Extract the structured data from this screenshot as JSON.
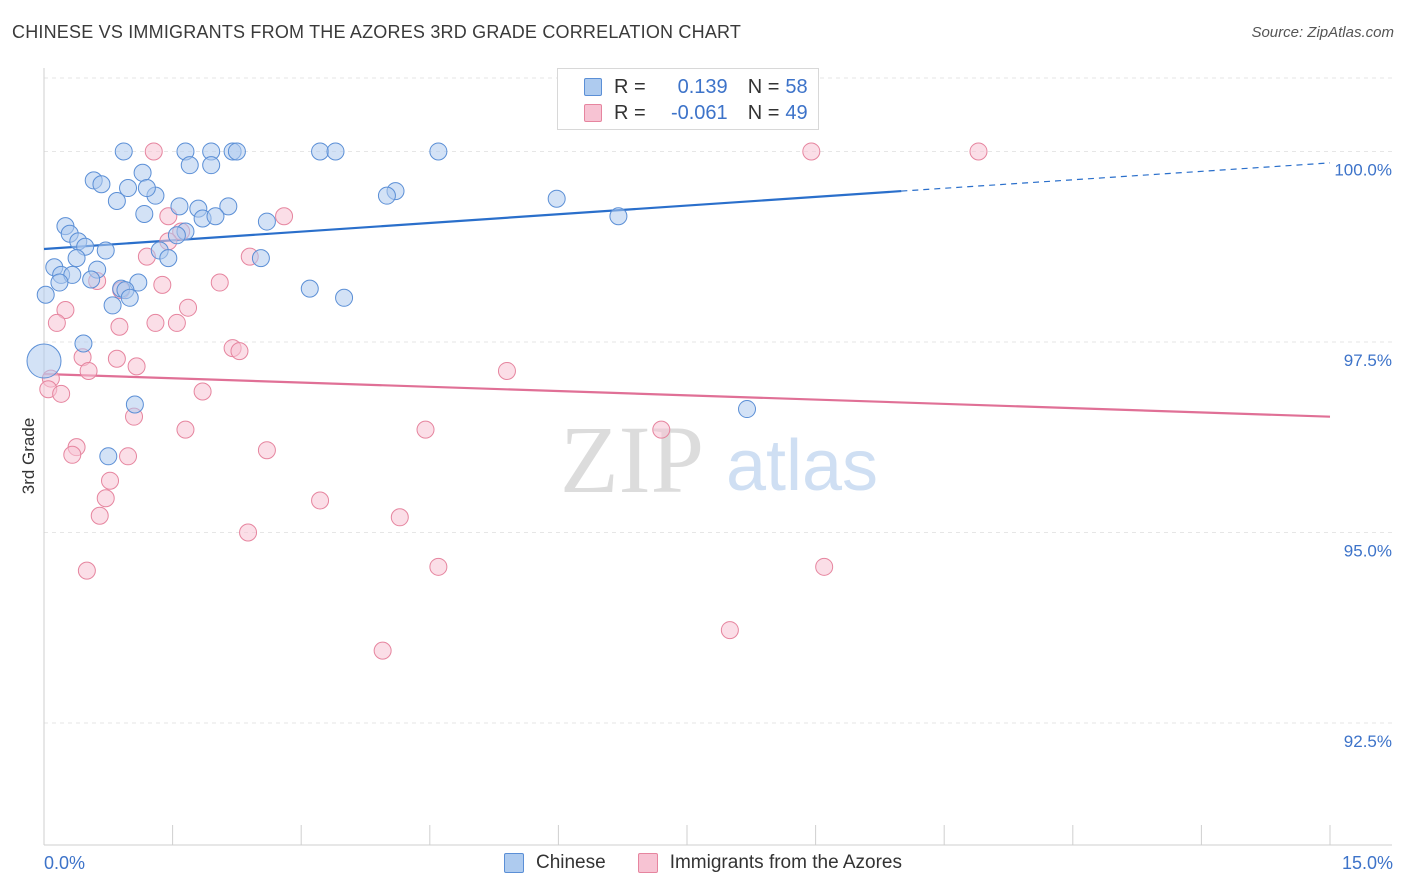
{
  "title": "CHINESE VS IMMIGRANTS FROM THE AZORES 3RD GRADE CORRELATION CHART",
  "source": "Source: ZipAtlas.com",
  "watermark": {
    "zip": "ZIP",
    "atlas": "atlas"
  },
  "legend": {
    "r_label": "R =",
    "n_label": "N =",
    "rows": [
      {
        "name": "Chinese",
        "r": "0.139",
        "n": "58"
      },
      {
        "name": "Immigrants from the Azores",
        "r": "-0.061",
        "n": "49"
      }
    ]
  },
  "chart_data": {
    "type": "scatter",
    "title": "CHINESE VS IMMIGRANTS FROM THE AZORES 3RD GRADE CORRELATION CHART",
    "xlabel": "",
    "ylabel": "3rd Grade",
    "xlim": [
      0,
      15
    ],
    "ylim": [
      90.9,
      101.2
    ],
    "x_tick_labels": [
      "0.0%",
      "15.0%"
    ],
    "y_ticks": [
      92.5,
      95.0,
      97.5,
      100.0
    ],
    "y_tick_labels": [
      "92.5%",
      "95.0%",
      "97.5%",
      "100.0%"
    ],
    "grid": true,
    "legend_position": "top-center",
    "colors": {
      "chinese_fill": "#aecbef",
      "chinese_stroke": "#5b8fd6",
      "chinese_line": "#2a6fcb",
      "azores_fill": "#f7c3d3",
      "azores_stroke": "#e6859f",
      "azores_line": "#e07096",
      "tick_label": "#3d73c9"
    },
    "series": [
      {
        "name": "Chinese",
        "trend": {
          "x0": 0.0,
          "y0": 98.72,
          "x1": 10.0,
          "y1": 99.48,
          "dash_x1": 15.0,
          "dash_y1": 99.85
        },
        "points": [
          [
            0.93,
            100.0
          ],
          [
            1.65,
            100.0
          ],
          [
            1.95,
            100.0
          ],
          [
            2.2,
            100.0
          ],
          [
            2.25,
            100.0
          ],
          [
            3.22,
            100.0
          ],
          [
            3.4,
            100.0
          ],
          [
            4.6,
            100.0
          ],
          [
            1.7,
            99.82
          ],
          [
            1.95,
            99.82
          ],
          [
            0.58,
            99.62
          ],
          [
            1.15,
            99.72
          ],
          [
            0.67,
            99.57
          ],
          [
            0.98,
            99.52
          ],
          [
            1.3,
            99.42
          ],
          [
            1.2,
            99.52
          ],
          [
            4.1,
            99.48
          ],
          [
            4.0,
            99.42
          ],
          [
            5.98,
            99.38
          ],
          [
            0.85,
            99.35
          ],
          [
            1.58,
            99.28
          ],
          [
            1.8,
            99.25
          ],
          [
            2.15,
            99.28
          ],
          [
            1.17,
            99.18
          ],
          [
            1.85,
            99.12
          ],
          [
            6.7,
            99.15
          ],
          [
            2.6,
            99.08
          ],
          [
            0.25,
            99.02
          ],
          [
            0.3,
            98.92
          ],
          [
            1.65,
            98.95
          ],
          [
            0.4,
            98.82
          ],
          [
            0.48,
            98.75
          ],
          [
            1.35,
            98.7
          ],
          [
            0.72,
            98.7
          ],
          [
            0.38,
            98.6
          ],
          [
            1.45,
            98.6
          ],
          [
            2.53,
            98.6
          ],
          [
            0.12,
            98.48
          ],
          [
            0.2,
            98.38
          ],
          [
            0.33,
            98.38
          ],
          [
            0.62,
            98.45
          ],
          [
            0.55,
            98.32
          ],
          [
            0.18,
            98.28
          ],
          [
            1.1,
            98.28
          ],
          [
            0.9,
            98.2
          ],
          [
            0.95,
            98.18
          ],
          [
            3.1,
            98.2
          ],
          [
            0.02,
            98.12
          ],
          [
            1.0,
            98.08
          ],
          [
            3.5,
            98.08
          ],
          [
            0.8,
            97.98
          ],
          [
            0.46,
            97.48
          ],
          [
            0.0,
            97.25
          ],
          [
            1.06,
            96.68
          ],
          [
            8.2,
            96.62
          ],
          [
            0.75,
            96.0
          ],
          [
            1.55,
            98.9
          ],
          [
            2.0,
            99.15
          ]
        ]
      },
      {
        "name": "Immigrants from the Azores",
        "trend": {
          "x0": 0.0,
          "y0": 97.08,
          "x1": 15.0,
          "y1": 96.52
        },
        "points": [
          [
            1.28,
            100.0
          ],
          [
            8.95,
            100.0
          ],
          [
            10.9,
            100.0
          ],
          [
            2.8,
            99.15
          ],
          [
            1.45,
            99.15
          ],
          [
            1.6,
            98.95
          ],
          [
            1.45,
            98.82
          ],
          [
            1.2,
            98.62
          ],
          [
            2.4,
            98.62
          ],
          [
            0.62,
            98.3
          ],
          [
            1.38,
            98.25
          ],
          [
            2.05,
            98.28
          ],
          [
            0.9,
            98.18
          ],
          [
            1.68,
            97.95
          ],
          [
            0.25,
            97.92
          ],
          [
            0.15,
            97.75
          ],
          [
            1.3,
            97.75
          ],
          [
            1.55,
            97.75
          ],
          [
            0.88,
            97.7
          ],
          [
            2.2,
            97.42
          ],
          [
            2.28,
            97.38
          ],
          [
            0.45,
            97.3
          ],
          [
            0.85,
            97.28
          ],
          [
            1.08,
            97.18
          ],
          [
            0.52,
            97.12
          ],
          [
            5.4,
            97.12
          ],
          [
            0.08,
            97.02
          ],
          [
            0.05,
            96.88
          ],
          [
            0.2,
            96.82
          ],
          [
            1.85,
            96.85
          ],
          [
            1.05,
            96.52
          ],
          [
            1.65,
            96.35
          ],
          [
            4.45,
            96.35
          ],
          [
            7.2,
            96.35
          ],
          [
            0.38,
            96.12
          ],
          [
            2.6,
            96.08
          ],
          [
            0.33,
            96.02
          ],
          [
            0.98,
            96.0
          ],
          [
            0.77,
            95.68
          ],
          [
            0.72,
            95.45
          ],
          [
            3.22,
            95.42
          ],
          [
            0.65,
            95.22
          ],
          [
            4.15,
            95.2
          ],
          [
            2.38,
            95.0
          ],
          [
            0.5,
            94.5
          ],
          [
            4.6,
            94.55
          ],
          [
            9.1,
            94.55
          ],
          [
            8.0,
            93.72
          ],
          [
            3.95,
            93.45
          ]
        ]
      }
    ]
  }
}
